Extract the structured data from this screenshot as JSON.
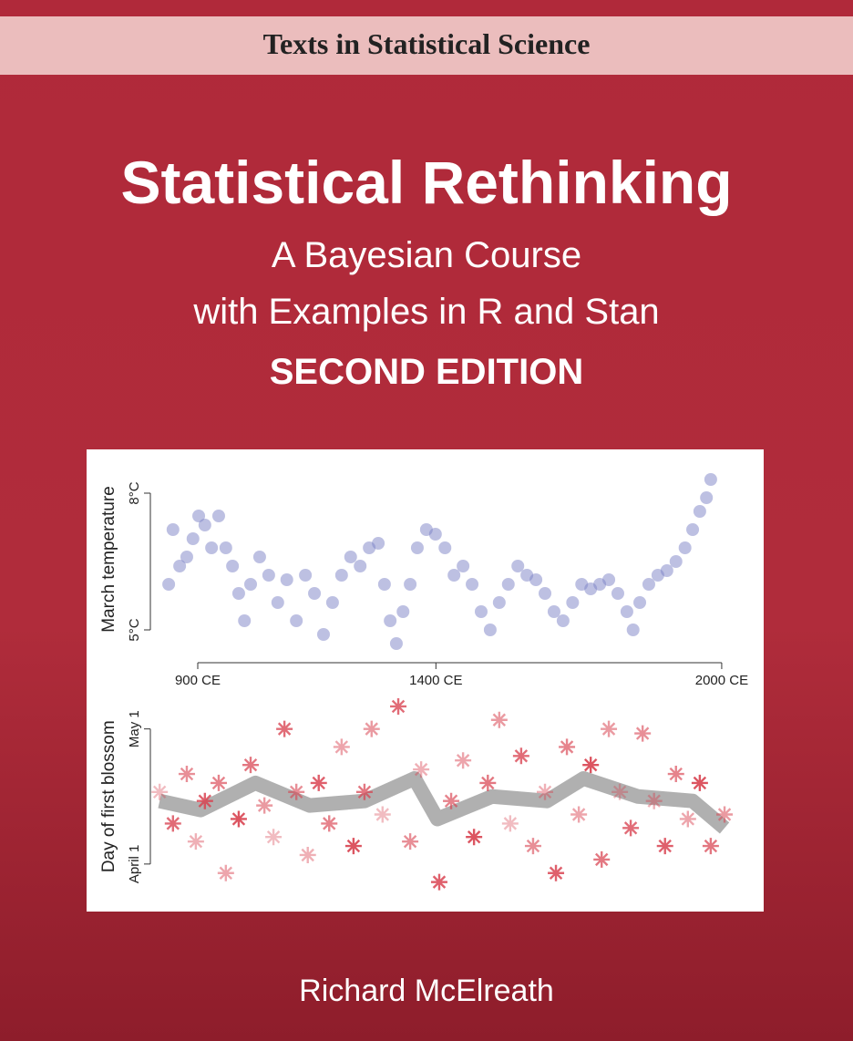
{
  "series_name": "Texts in Statistical Science",
  "title": "Statistical Rethinking",
  "subtitle": [
    "A Bayesian Course",
    "with Examples in R and Stan"
  ],
  "edition": "SECOND EDITION",
  "author": "Richard McElreath",
  "chart_data": [
    {
      "type": "scatter",
      "y_label": "March temperature",
      "color": "#7b82c6",
      "xlim": [
        830,
        1990
      ],
      "ylim": [
        4.6,
        8.5
      ],
      "xticks": [
        {
          "value": 900,
          "label": "900 CE"
        },
        {
          "value": 1400,
          "label": "1400 CE"
        },
        {
          "value": 2000,
          "label": "2000 CE"
        }
      ],
      "yticks": [
        {
          "value": 5,
          "label": "5°C"
        },
        {
          "value": 8,
          "label": "8°C"
        }
      ],
      "x": [
        839,
        848,
        862,
        877,
        890,
        902,
        915,
        929,
        944,
        959,
        973,
        986,
        998,
        1011,
        1030,
        1049,
        1068,
        1087,
        1107,
        1126,
        1145,
        1164,
        1183,
        1202,
        1221,
        1241,
        1260,
        1279,
        1292,
        1304,
        1317,
        1331,
        1346,
        1361,
        1380,
        1399,
        1419,
        1438,
        1457,
        1476,
        1495,
        1514,
        1533,
        1552,
        1572,
        1591,
        1610,
        1629,
        1648,
        1667,
        1687,
        1706,
        1725,
        1744,
        1763,
        1782,
        1801,
        1814,
        1828,
        1847,
        1866,
        1885,
        1904,
        1923,
        1939,
        1954,
        1968,
        1977
      ],
      "values": [
        6.0,
        7.2,
        6.4,
        6.6,
        7.0,
        7.5,
        7.3,
        6.8,
        7.5,
        6.8,
        6.4,
        5.8,
        5.2,
        6.0,
        6.6,
        6.2,
        5.6,
        6.1,
        5.2,
        6.2,
        5.8,
        4.9,
        5.6,
        6.2,
        6.6,
        6.4,
        6.8,
        6.9,
        6.0,
        5.2,
        4.7,
        5.4,
        6.0,
        6.8,
        7.2,
        7.1,
        6.8,
        6.2,
        6.4,
        6.0,
        5.4,
        5.0,
        5.6,
        6.0,
        6.4,
        6.2,
        6.1,
        5.8,
        5.4,
        5.2,
        5.6,
        6.0,
        5.9,
        6.0,
        6.1,
        5.8,
        5.4,
        5.0,
        5.6,
        6.0,
        6.2,
        6.3,
        6.5,
        6.8,
        7.2,
        7.6,
        7.9,
        8.3
      ]
    },
    {
      "type": "scatter",
      "y_label": "Day of first blossom",
      "color": "#d8404e",
      "xlim": [
        830,
        1990
      ],
      "ylim": [
        85,
        127
      ],
      "yticks": [
        {
          "value": 91,
          "label": "April 1"
        },
        {
          "value": 121,
          "label": "May 1"
        }
      ],
      "x": [
        820,
        848,
        877,
        896,
        915,
        944,
        959,
        986,
        1011,
        1040,
        1059,
        1082,
        1107,
        1131,
        1154,
        1176,
        1202,
        1227,
        1250,
        1265,
        1288,
        1321,
        1346,
        1369,
        1407,
        1432,
        1457,
        1480,
        1509,
        1533,
        1556,
        1579,
        1604,
        1629,
        1652,
        1675,
        1700,
        1725,
        1748,
        1763,
        1786,
        1809,
        1834,
        1858,
        1881,
        1904,
        1929,
        1954,
        1977,
        2006
      ],
      "values": [
        107,
        100,
        111,
        96,
        105,
        109,
        89,
        101,
        113,
        104,
        97,
        121,
        107,
        93,
        109,
        100,
        117,
        95,
        107,
        121,
        102,
        126,
        96,
        112,
        87,
        105,
        114,
        97,
        109,
        123,
        100,
        115,
        95,
        107,
        89,
        117,
        102,
        113,
        92,
        121,
        107,
        99,
        120,
        105,
        95,
        111,
        101,
        109,
        95,
        102
      ],
      "trend": {
        "color": "#707070",
        "x": [
          820,
          906,
          1021,
          1135,
          1250,
          1355,
          1403,
          1518,
          1633,
          1710,
          1824,
          1939,
          2006
        ],
        "values": [
          105,
          103,
          109,
          104,
          105,
          110,
          101,
          106,
          105,
          110,
          106,
          105,
          99
        ]
      }
    }
  ]
}
